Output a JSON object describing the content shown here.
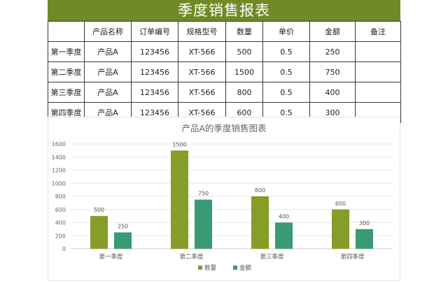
{
  "sheet": {
    "title": "季度销售报表",
    "headers": [
      "",
      "产品名称",
      "订单编号",
      "规格型号",
      "数量",
      "单价",
      "金额",
      "备注"
    ],
    "rows": [
      [
        "第一季度",
        "产品A",
        "123456",
        "XT-566",
        "500",
        "0.5",
        "250",
        ""
      ],
      [
        "第二季度",
        "产品A",
        "123456",
        "XT-566",
        "1500",
        "0.5",
        "750",
        ""
      ],
      [
        "第三季度",
        "产品A",
        "123456",
        "XT-566",
        "800",
        "0.5",
        "400",
        ""
      ],
      [
        "第四季度",
        "产品A",
        "123456",
        "XT-566",
        "600",
        "0.5",
        "300",
        ""
      ]
    ]
  },
  "chart_data": {
    "type": "bar",
    "title": "产品A的季度销售图表",
    "categories": [
      "第一季度",
      "第二季度",
      "第三季度",
      "第四季度"
    ],
    "series": [
      {
        "name": "数量",
        "values": [
          500,
          1500,
          800,
          600
        ],
        "color": "#869d27"
      },
      {
        "name": "金额",
        "values": [
          250,
          750,
          400,
          300
        ],
        "color": "#3a9a74"
      }
    ],
    "yticks": [
      0,
      200,
      400,
      600,
      800,
      1000,
      1200,
      1400,
      1600
    ],
    "ylim": [
      0,
      1600
    ],
    "grid": true,
    "legend": "bottom",
    "data_labels": true
  }
}
